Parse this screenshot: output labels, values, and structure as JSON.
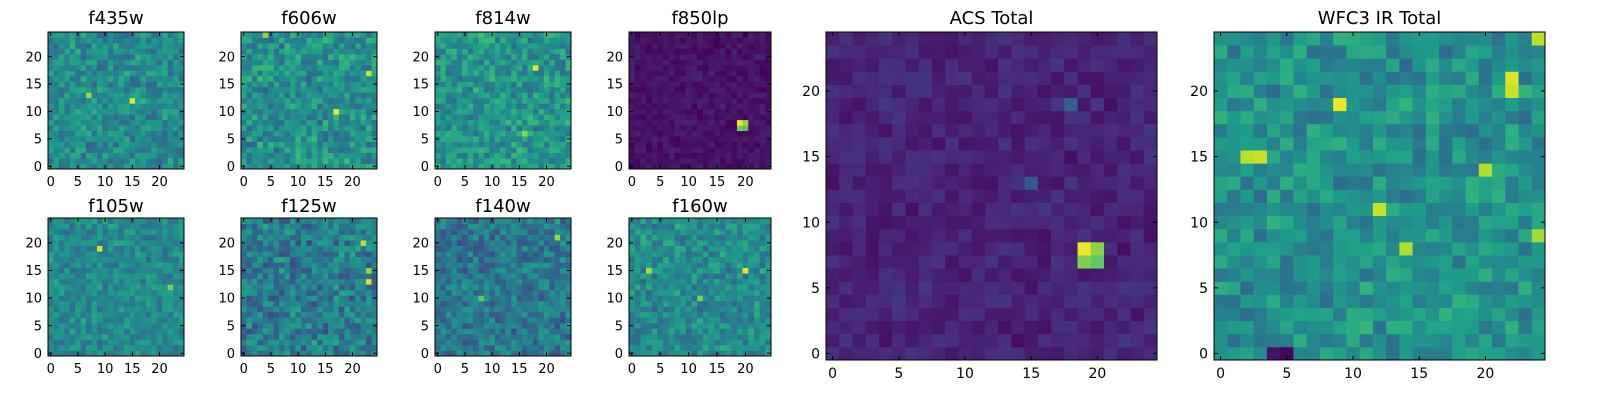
{
  "figure": {
    "description_free": true
  },
  "colormap": {
    "name": "viridis",
    "stops": [
      "#440154",
      "#482878",
      "#3e4989",
      "#31688e",
      "#26828e",
      "#1f9e89",
      "#35b779",
      "#6ece58",
      "#b5de2b",
      "#fde725"
    ]
  },
  "chart_data": [
    {
      "type": "heatmap",
      "title": "f435w",
      "grid_size": 25,
      "x_ticks": [
        0,
        5,
        10,
        15,
        20
      ],
      "y_ticks": [
        0,
        5,
        10,
        15,
        20
      ],
      "xlim": [
        0,
        25
      ],
      "ylim": [
        0,
        25
      ],
      "background_level": 0.48,
      "noise_level": 0.13,
      "highlights": [
        {
          "x": 15,
          "y": 12,
          "value": 0.95
        },
        {
          "x": 7,
          "y": 13,
          "value": 0.85
        }
      ]
    },
    {
      "type": "heatmap",
      "title": "f606w",
      "grid_size": 25,
      "x_ticks": [
        0,
        5,
        10,
        15,
        20
      ],
      "y_ticks": [
        0,
        5,
        10,
        15,
        20
      ],
      "xlim": [
        0,
        25
      ],
      "ylim": [
        0,
        25
      ],
      "background_level": 0.5,
      "noise_level": 0.15,
      "highlights": [
        {
          "x": 17,
          "y": 10,
          "value": 0.98
        },
        {
          "x": 23,
          "y": 17,
          "value": 0.92
        },
        {
          "x": 4,
          "y": 24,
          "value": 0.85
        }
      ]
    },
    {
      "type": "heatmap",
      "title": "f814w",
      "grid_size": 25,
      "x_ticks": [
        0,
        5,
        10,
        15,
        20
      ],
      "y_ticks": [
        0,
        5,
        10,
        15,
        20
      ],
      "xlim": [
        0,
        25
      ],
      "ylim": [
        0,
        25
      ],
      "background_level": 0.52,
      "noise_level": 0.14,
      "highlights": [
        {
          "x": 18,
          "y": 18,
          "value": 0.97
        },
        {
          "x": 16,
          "y": 6,
          "value": 0.82
        }
      ]
    },
    {
      "type": "heatmap",
      "title": "f850lp",
      "grid_size": 25,
      "x_ticks": [
        0,
        5,
        10,
        15,
        20
      ],
      "y_ticks": [
        0,
        5,
        10,
        15,
        20
      ],
      "xlim": [
        0,
        25
      ],
      "ylim": [
        0,
        25
      ],
      "background_level": 0.05,
      "noise_level": 0.04,
      "highlights": [
        {
          "x": 19,
          "y": 8,
          "value": 0.98
        },
        {
          "x": 20,
          "y": 8,
          "value": 0.85
        },
        {
          "x": 19,
          "y": 7,
          "value": 0.78
        },
        {
          "x": 20,
          "y": 7,
          "value": 0.72
        }
      ]
    },
    {
      "type": "heatmap",
      "title": "f105w",
      "grid_size": 25,
      "x_ticks": [
        0,
        5,
        10,
        15,
        20
      ],
      "y_ticks": [
        0,
        5,
        10,
        15,
        20
      ],
      "xlim": [
        0,
        25
      ],
      "ylim": [
        0,
        25
      ],
      "background_level": 0.47,
      "noise_level": 0.11,
      "highlights": [
        {
          "x": 9,
          "y": 19,
          "value": 0.95
        },
        {
          "x": 22,
          "y": 12,
          "value": 0.8
        }
      ]
    },
    {
      "type": "heatmap",
      "title": "f125w",
      "grid_size": 25,
      "x_ticks": [
        0,
        5,
        10,
        15,
        20
      ],
      "y_ticks": [
        0,
        5,
        10,
        15,
        20
      ],
      "xlim": [
        0,
        25
      ],
      "ylim": [
        0,
        25
      ],
      "background_level": 0.42,
      "noise_level": 0.15,
      "highlights": [
        {
          "x": 23,
          "y": 13,
          "value": 0.95
        },
        {
          "x": 22,
          "y": 20,
          "value": 0.9
        },
        {
          "x": 23,
          "y": 15,
          "value": 0.85
        }
      ]
    },
    {
      "type": "heatmap",
      "title": "f140w",
      "grid_size": 25,
      "x_ticks": [
        0,
        5,
        10,
        15,
        20
      ],
      "y_ticks": [
        0,
        5,
        10,
        15,
        20
      ],
      "xlim": [
        0,
        25
      ],
      "ylim": [
        0,
        25
      ],
      "background_level": 0.4,
      "noise_level": 0.14,
      "highlights": [
        {
          "x": 22,
          "y": 21,
          "value": 0.85
        },
        {
          "x": 8,
          "y": 10,
          "value": 0.75
        }
      ]
    },
    {
      "type": "heatmap",
      "title": "f160w",
      "grid_size": 25,
      "x_ticks": [
        0,
        5,
        10,
        15,
        20
      ],
      "y_ticks": [
        0,
        5,
        10,
        15,
        20
      ],
      "xlim": [
        0,
        25
      ],
      "ylim": [
        0,
        25
      ],
      "background_level": 0.48,
      "noise_level": 0.13,
      "highlights": [
        {
          "x": 20,
          "y": 15,
          "value": 0.98
        },
        {
          "x": 3,
          "y": 15,
          "value": 0.88
        },
        {
          "x": 12,
          "y": 10,
          "value": 0.8
        }
      ]
    },
    {
      "type": "heatmap",
      "title": "ACS Total",
      "grid_size": 25,
      "x_ticks": [
        0,
        5,
        10,
        15,
        20
      ],
      "y_ticks": [
        0,
        5,
        10,
        15,
        20
      ],
      "xlim": [
        0,
        25
      ],
      "ylim": [
        0,
        25
      ],
      "background_level": 0.1,
      "noise_level": 0.05,
      "highlights": [
        {
          "x": 19,
          "y": 8,
          "value": 0.98
        },
        {
          "x": 20,
          "y": 8,
          "value": 0.82
        },
        {
          "x": 19,
          "y": 7,
          "value": 0.8
        },
        {
          "x": 20,
          "y": 7,
          "value": 0.75
        },
        {
          "x": 18,
          "y": 19,
          "value": 0.3
        },
        {
          "x": 15,
          "y": 13,
          "value": 0.28
        }
      ]
    },
    {
      "type": "heatmap",
      "title": "WFC3 IR Total",
      "grid_size": 25,
      "x_ticks": [
        0,
        5,
        10,
        15,
        20
      ],
      "y_ticks": [
        0,
        5,
        10,
        15,
        20
      ],
      "xlim": [
        0,
        25
      ],
      "ylim": [
        0,
        25
      ],
      "background_level": 0.5,
      "noise_level": 0.13,
      "highlights": [
        {
          "x": 9,
          "y": 19,
          "value": 0.98
        },
        {
          "x": 22,
          "y": 21,
          "value": 0.95
        },
        {
          "x": 22,
          "y": 20,
          "value": 0.92
        },
        {
          "x": 24,
          "y": 24,
          "value": 0.9
        },
        {
          "x": 2,
          "y": 15,
          "value": 0.9
        },
        {
          "x": 3,
          "y": 15,
          "value": 0.92
        },
        {
          "x": 12,
          "y": 11,
          "value": 0.92
        },
        {
          "x": 20,
          "y": 14,
          "value": 0.88
        },
        {
          "x": 14,
          "y": 8,
          "value": 0.88
        },
        {
          "x": 24,
          "y": 9,
          "value": 0.86
        },
        {
          "x": 5,
          "y": 0,
          "value": 0.02
        },
        {
          "x": 4,
          "y": 0,
          "value": 0.05
        }
      ]
    }
  ]
}
